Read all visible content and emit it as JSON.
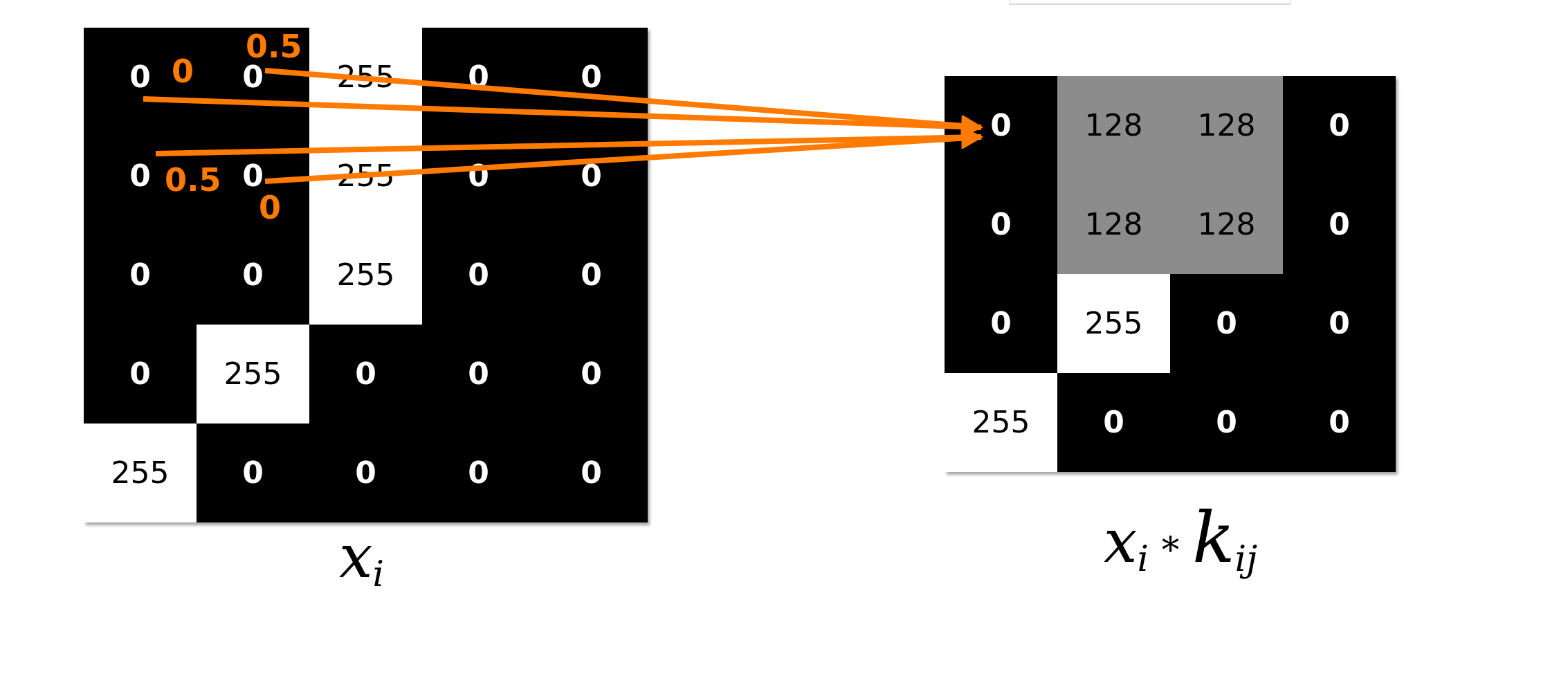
{
  "input_matrix": {
    "label_symbol": "x",
    "label_subscript": "i",
    "rows": [
      [
        "0",
        "0",
        "255",
        "0",
        "0"
      ],
      [
        "0",
        "0",
        "255",
        "0",
        "0"
      ],
      [
        "0",
        "0",
        "255",
        "0",
        "0"
      ],
      [
        "0",
        "255",
        "0",
        "0",
        "0"
      ],
      [
        "255",
        "0",
        "0",
        "0",
        "0"
      ]
    ]
  },
  "output_matrix": {
    "label_symbol": "x",
    "label_subscript": "i",
    "label_operator": "∗",
    "label_kernel": "k",
    "label_kernel_subscript": "ij",
    "rows": [
      [
        "0",
        "128",
        "128",
        "0"
      ],
      [
        "0",
        "128",
        "128",
        "0"
      ],
      [
        "0",
        "255",
        "0",
        "0"
      ],
      [
        "255",
        "0",
        "0",
        "0"
      ]
    ]
  },
  "kernel_weights": [
    "0",
    "0.5",
    "0.5",
    "0"
  ],
  "colors": {
    "arrow": "#ff7a00",
    "dark_cell": "#000000",
    "bright_cell": "#ffffff",
    "mid_cell": "#8c8c8c"
  }
}
